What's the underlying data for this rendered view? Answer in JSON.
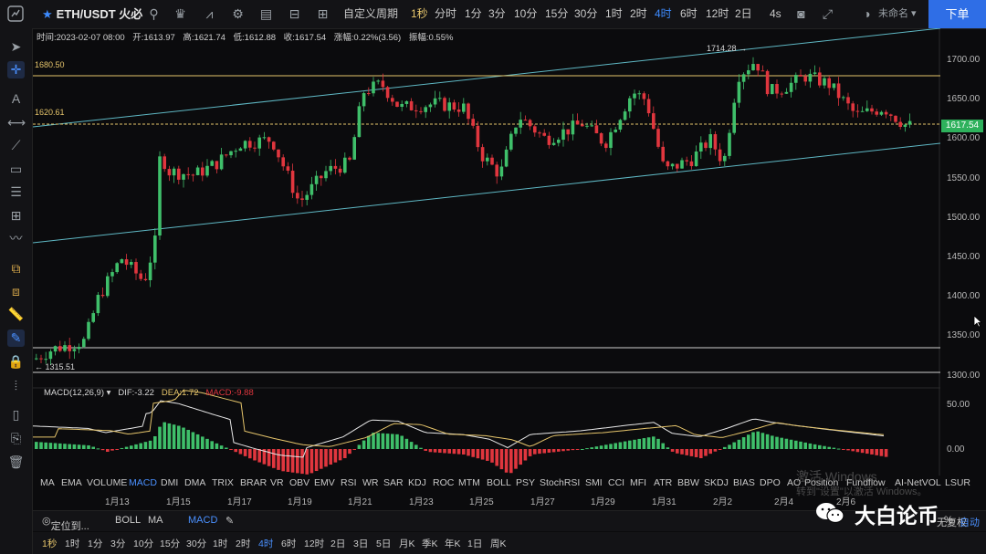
{
  "toolbar": {
    "symbol": "ETH/USDT 火必",
    "custom_period": "自定义周期",
    "periods": [
      "1秒",
      "分时",
      "1分",
      "3分",
      "10分",
      "15分",
      "30分",
      "1时",
      "2时",
      "4时",
      "6时",
      "12时",
      "2日"
    ],
    "active_period": "4时",
    "refresh": "4s",
    "account": "未命名",
    "sell_button": "下单"
  },
  "info_bar": {
    "time": "时间:2023-02-07 08:00",
    "open": "开:1613.97",
    "high": "高:1621.74",
    "low": "低:1612.88",
    "close": "收:1617.54",
    "change": "涨幅:0.22%(3.56)",
    "amplitude": "振幅:0.55%"
  },
  "price_axis": [
    "1700.00",
    "1650.00",
    "1600.00",
    "1550.00",
    "1500.00",
    "1450.00",
    "1400.00",
    "1350.00",
    "1300.00"
  ],
  "current_price": "1617.54",
  "levels": {
    "high_label": "1714.28",
    "level_1680": "1680.50",
    "level_1620": "1620.61",
    "low_label": "1315.51"
  },
  "macd": {
    "name": "MACD(12,26,9)",
    "dif": "DIF:-3.22",
    "dea": "DEA:1.72",
    "macd_val": "MACD:-9.88",
    "axis": [
      "50.00",
      "0.00"
    ]
  },
  "indicators": [
    "MA",
    "EMA",
    "VOLUME",
    "MACD",
    "DMI",
    "DMA",
    "TRIX",
    "BRAR",
    "VR",
    "OBV",
    "EMV",
    "RSI",
    "WR",
    "SAR",
    "KDJ",
    "ROC",
    "MTM",
    "BOLL",
    "PSY",
    "StochRSI",
    "SMI",
    "CCI",
    "MFI",
    "ATR",
    "BBW",
    "SKDJ",
    "BIAS",
    "DPO",
    "AO",
    "Position",
    "Fundflow",
    "AI-NetVOL",
    "LSUR"
  ],
  "active_indicator": "MACD",
  "dates": [
    "1月13",
    "1月15",
    "1月17",
    "1月19",
    "1月21",
    "1月23",
    "1月25",
    "1月27",
    "1月29",
    "1月31",
    "2月2",
    "2月4",
    "2月6"
  ],
  "bottom_bar": {
    "locate": "定位到...",
    "boll": "BOLL",
    "ma": "MA",
    "macd": "MACD",
    "adjust": "无复权",
    "percent": "%",
    "auto": "自动"
  },
  "bottom_periods": [
    "1秒",
    "1时",
    "1分",
    "3分",
    "10分",
    "15分",
    "30分",
    "1时",
    "2时",
    "4时",
    "6时",
    "12时",
    "2日",
    "3日",
    "5日",
    "月K",
    "季K",
    "年K",
    "1日",
    "周K"
  ],
  "bottom_active": "4时",
  "watermark": {
    "line1": "激活 Windows",
    "line2": "转到\"设置\"以激活 Windows。"
  },
  "brand": "大白论币",
  "colors": {
    "up": "#3fbf6a",
    "down": "#e0363e",
    "accent": "#3d8bff",
    "level": "#e6c56b",
    "channel": "#5fb8c4"
  }
}
